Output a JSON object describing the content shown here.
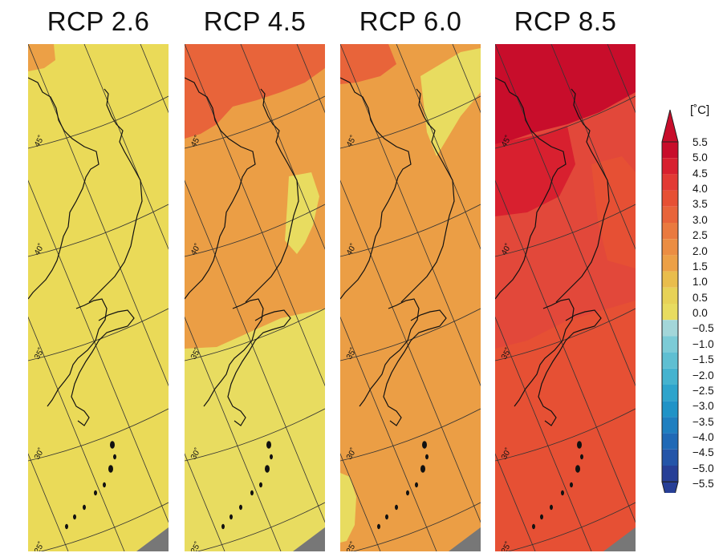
{
  "figure": {
    "panels": [
      {
        "title": "RCP 2.6",
        "base_color": "#eada58",
        "anomaly_class": "0.5 to 1.0"
      },
      {
        "title": "RCP 4.5",
        "base_color": "#eb9e45",
        "anomaly_class": "1.5 to 2.0"
      },
      {
        "title": "RCP 6.0",
        "base_color": "#eb9e45",
        "anomaly_class": "1.5 to 2.0"
      },
      {
        "title": "RCP 8.5",
        "base_color": "#e2483a",
        "anomaly_class": "3.0 to 3.5"
      }
    ],
    "latitude_labels": [
      "45˚",
      "40˚",
      "35˚",
      "30˚",
      "25˚"
    ]
  },
  "legend": {
    "unit": "[˚C]",
    "ticks": [
      "5.5",
      "5.0",
      "4.5",
      "4.0",
      "3.5",
      "3.0",
      "2.5",
      "2.0",
      "1.5",
      "1.0",
      "0.5",
      "0.0",
      "−0.5",
      "−1.0",
      "−1.5",
      "−2.0",
      "−2.5",
      "−3.0",
      "−3.5",
      "−4.0",
      "−4.5",
      "−5.0",
      "−5.5"
    ],
    "colors_high_to_low": [
      "#c80d2b",
      "#d8202f",
      "#e23a34",
      "#e65034",
      "#e8643a",
      "#ea7a3f",
      "#eb8d42",
      "#eca046",
      "#e9bd4c",
      "#e7d257",
      "#e8dc60",
      "#a3d6d9",
      "#7ccbd6",
      "#5fbfd2",
      "#45b3cf",
      "#2ea4cc",
      "#2093c7",
      "#1f7fc0",
      "#2069b6",
      "#2455a8",
      "#273f96"
    ],
    "arrow_top_color": "#c80d2b",
    "arrow_bottom_color": "#273f96"
  }
}
